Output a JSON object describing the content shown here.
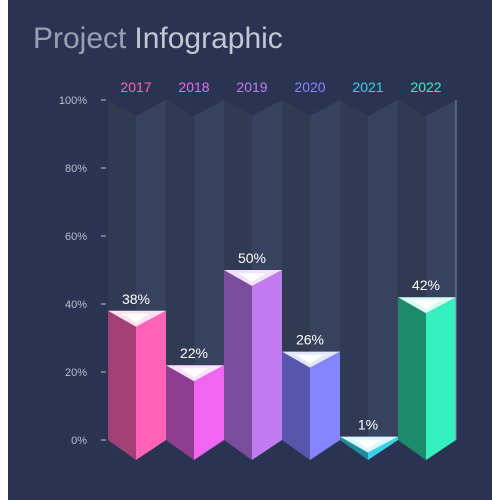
{
  "chart_data": {
    "type": "bar",
    "title_light": "Project",
    "title_bold": "Infographic",
    "categories": [
      "2017",
      "2018",
      "2019",
      "2020",
      "2021",
      "2022"
    ],
    "values": [
      38,
      22,
      50,
      26,
      1,
      42
    ],
    "value_labels": [
      "38%",
      "22%",
      "50%",
      "26%",
      "1%",
      "42%"
    ],
    "y_ticks": [
      "0%",
      "20%",
      "40%",
      "60%",
      "80%",
      "100%"
    ],
    "ylim": [
      0,
      100
    ],
    "grid": false,
    "legend": "none",
    "colors": {
      "background": "#2a3452",
      "title_light": "#9aa0b4",
      "title_bold": "#c3c7d4",
      "tick_text": "#b9bfd0",
      "value_text": "#ffffff",
      "track": "#3a4562",
      "series": [
        {
          "front": "#ff63b8",
          "side": "#a23f74",
          "top": "#ffe0f1",
          "label": "#ff63b8"
        },
        {
          "front": "#f166f0",
          "side": "#8e3e91",
          "top": "#fde2ff",
          "label": "#f166f0"
        },
        {
          "front": "#c27af0",
          "side": "#7a4c9e",
          "top": "#f0e2ff",
          "label": "#c27af0"
        },
        {
          "front": "#8585ff",
          "side": "#5656ad",
          "top": "#e2e6ff",
          "label": "#8585ff"
        },
        {
          "front": "#35d3e8",
          "side": "#1e8c9c",
          "top": "#d9f8ff",
          "label": "#35d3e8"
        },
        {
          "front": "#36f0c0",
          "side": "#1d8a6b",
          "top": "#d8fff3",
          "label": "#36f0c0"
        }
      ]
    }
  }
}
